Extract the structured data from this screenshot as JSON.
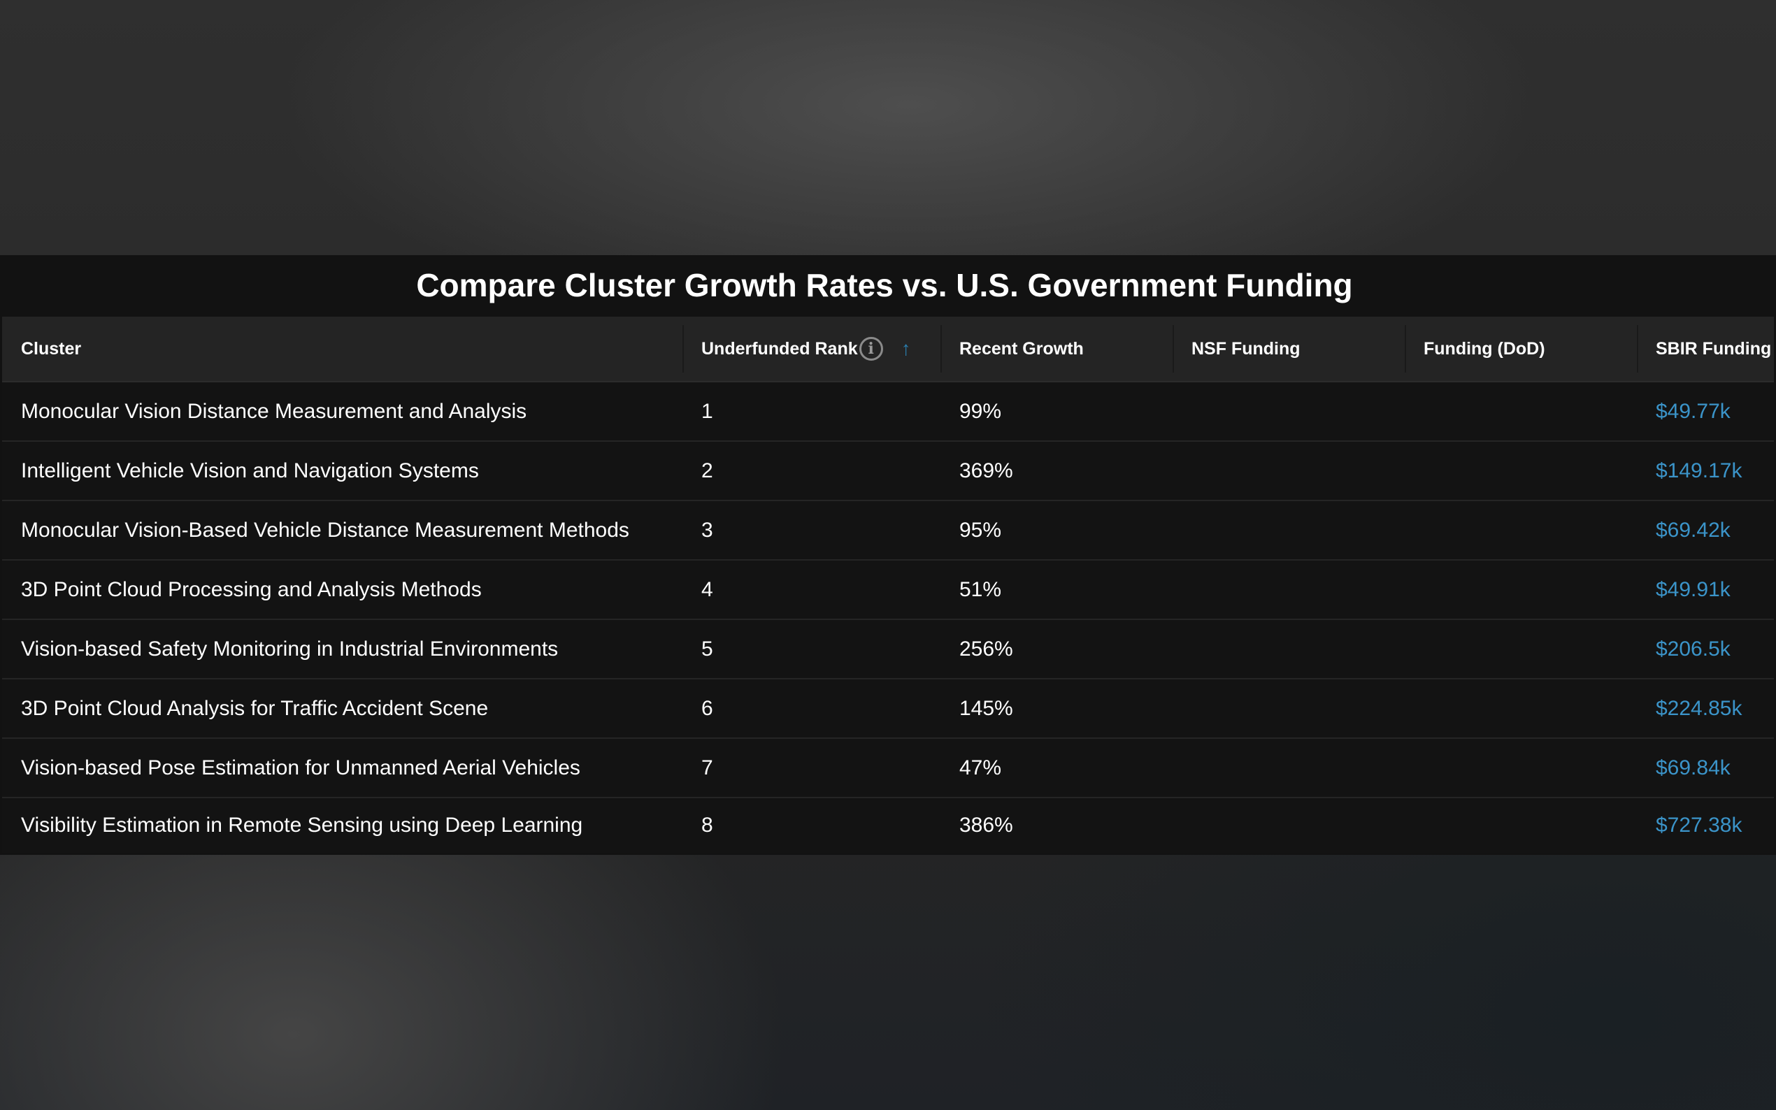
{
  "title": "Compare Cluster Growth Rates vs. U.S. Government Funding",
  "columns": {
    "cluster": "Cluster",
    "rank": "Underfunded Rank",
    "growth": "Recent Growth",
    "nsf": "NSF Funding",
    "dod": "Funding (DoD)",
    "sbir": "SBIR Funding"
  },
  "info_glyph": "i",
  "sort_glyph": "↑",
  "accent_color": "#3b94c9",
  "rows": [
    {
      "cluster": "Monocular Vision Distance Measurement and Analysis",
      "rank": "1",
      "growth": "99%",
      "nsf": "",
      "dod": "",
      "sbir": "$49.77k"
    },
    {
      "cluster": "Intelligent Vehicle Vision and Navigation Systems",
      "rank": "2",
      "growth": "369%",
      "nsf": "",
      "dod": "",
      "sbir": "$149.17k"
    },
    {
      "cluster": "Monocular Vision-Based Vehicle Distance Measurement Methods",
      "rank": "3",
      "growth": "95%",
      "nsf": "",
      "dod": "",
      "sbir": "$69.42k"
    },
    {
      "cluster": "3D Point Cloud Processing and Analysis Methods",
      "rank": "4",
      "growth": "51%",
      "nsf": "",
      "dod": "",
      "sbir": "$49.91k"
    },
    {
      "cluster": "Vision-based Safety Monitoring in Industrial Environments",
      "rank": "5",
      "growth": "256%",
      "nsf": "",
      "dod": "",
      "sbir": "$206.5k"
    },
    {
      "cluster": "3D Point Cloud Analysis for Traffic Accident Scene",
      "rank": "6",
      "growth": "145%",
      "nsf": "",
      "dod": "",
      "sbir": "$224.85k"
    },
    {
      "cluster": "Vision-based Pose Estimation for Unmanned Aerial Vehicles",
      "rank": "7",
      "growth": "47%",
      "nsf": "",
      "dod": "",
      "sbir": "$69.84k"
    },
    {
      "cluster": "Visibility Estimation in Remote Sensing using Deep Learning",
      "rank": "8",
      "growth": "386%",
      "nsf": "",
      "dod": "",
      "sbir": "$727.38k"
    }
  ]
}
